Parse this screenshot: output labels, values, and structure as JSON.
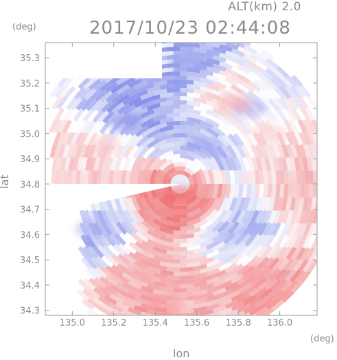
{
  "header": {
    "altitude_label": "ALT(km) 2.0",
    "timestamp": "2017/10/23 02:44:08",
    "y_unit": "(deg)",
    "x_unit": "(deg)"
  },
  "chart_data": {
    "type": "heatmap",
    "title": "2017/10/23 02:44:08",
    "subtitle": "ALT(km) 2.0",
    "xlabel": "lon",
    "ylabel": "lat",
    "x_unit": "(deg)",
    "y_unit": "(deg)",
    "xlim": [
      134.87,
      136.18
    ],
    "ylim": [
      34.28,
      35.36
    ],
    "x_ticks": [
      135.0,
      135.2,
      135.4,
      135.6,
      135.8,
      136.0
    ],
    "x_tick_labels": [
      "135.0",
      "135.2",
      "135.4",
      "135.6",
      "135.8",
      "136.0"
    ],
    "y_ticks": [
      34.3,
      34.4,
      34.5,
      34.6,
      34.7,
      34.8,
      34.9,
      35.0,
      35.1,
      35.2,
      35.3
    ],
    "y_tick_labels": [
      "34.3",
      "34.4",
      "34.5",
      "34.6",
      "34.7",
      "34.8",
      "34.9",
      "35.0",
      "35.1",
      "35.2",
      "35.3"
    ],
    "radar_center": {
      "lon": 135.52,
      "lat": 34.8
    },
    "colormap": {
      "negative": "#5a66e0",
      "zero": "#ffffff",
      "positive": "#f06868"
    },
    "grid": false,
    "legend": "none",
    "features": [
      {
        "lon": 135.52,
        "lat": 34.755,
        "value": 1.0
      },
      {
        "lon": 135.35,
        "lat": 34.45,
        "value": 0.55
      },
      {
        "lon": 135.45,
        "lat": 34.33,
        "value": 0.65
      },
      {
        "lon": 135.9,
        "lat": 34.44,
        "value": 0.7
      },
      {
        "lon": 135.62,
        "lat": 34.38,
        "value": 0.5
      },
      {
        "lon": 135.8,
        "lat": 34.6,
        "value": -0.45
      },
      {
        "lon": 135.25,
        "lat": 35.05,
        "value": -0.7
      },
      {
        "lon": 135.62,
        "lat": 34.95,
        "value": -0.55
      },
      {
        "lon": 135.55,
        "lat": 35.28,
        "value": -0.6
      },
      {
        "lon": 135.85,
        "lat": 35.1,
        "value": -0.5
      },
      {
        "lon": 135.15,
        "lat": 34.95,
        "value": 0.35
      },
      {
        "lon": 135.95,
        "lat": 35.0,
        "value": 0.3
      },
      {
        "lon": 135.78,
        "lat": 35.12,
        "value": 0.55
      },
      {
        "lon": 135.1,
        "lat": 34.62,
        "value": -0.5
      },
      {
        "lon": 136.1,
        "lat": 34.78,
        "value": 0.4
      },
      {
        "lon": 135.0,
        "lat": 34.82,
        "value": 0.3
      }
    ]
  }
}
